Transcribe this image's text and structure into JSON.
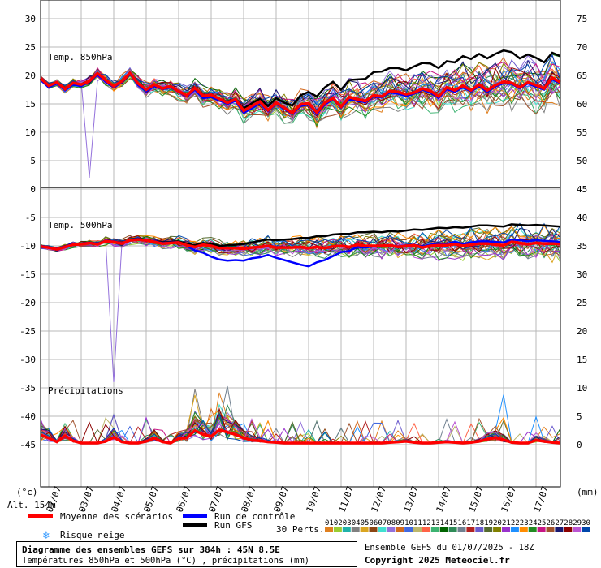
{
  "chart_data": {
    "type": "line",
    "title": "Diagramme des ensembles GEFS sur 384h : 45N 8.5E",
    "subtitle": "Températures 850hPa et 500hPa (°C) , précipitations (mm)",
    "ensemble_info": "Ensemble GEFS du 01/07/2025 - 18Z",
    "copyright": "Copyright 2025 Meteociel.fr",
    "left_unit": "(°c)",
    "right_unit": "(mm)",
    "altitude": "Alt. 154m",
    "x_dates": [
      "02/07",
      "03/07",
      "04/07",
      "05/07",
      "06/07",
      "07/07",
      "08/07",
      "09/07",
      "10/07",
      "11/07",
      "12/07",
      "13/07",
      "14/07",
      "15/07",
      "16/07",
      "17/07"
    ],
    "left_ticks": [
      30,
      25,
      20,
      15,
      10,
      5,
      0,
      -5,
      -10,
      -15,
      -20,
      -25,
      -30,
      -35,
      -40,
      -45
    ],
    "right_ticks": [
      75,
      70,
      65,
      60,
      55,
      50,
      45,
      40,
      35,
      30,
      25,
      20,
      15,
      10,
      5,
      0
    ],
    "panels": [
      {
        "label": "Temp. 850hPa",
        "ylim": [
          0,
          30
        ]
      },
      {
        "label": "Temp. 500hPa",
        "ylim": [
          -45,
          0
        ]
      },
      {
        "label": "Précipitations",
        "ylim": [
          0,
          15
        ]
      }
    ],
    "x_steps": 64,
    "t850_mean": [
      19.5,
      18.2,
      18.8,
      17.6,
      18.7,
      18.4,
      19,
      20.4,
      19.2,
      18.1,
      19,
      20.4,
      18.6,
      17.5,
      18.4,
      17.7,
      18.1,
      17.2,
      16.5,
      17.8,
      16.4,
      16.6,
      15.9,
      15.2,
      15.8,
      13.8,
      14.6,
      15.4,
      13.9,
      15.2,
      14.3,
      13.4,
      14.9,
      15.1,
      13.5,
      15.2,
      16,
      14.5,
      16.2,
      15.8,
      15.5,
      16.5,
      16.3,
      17.3,
      17.1,
      16.7,
      17,
      17.7,
      17.3,
      16.3,
      17.9,
      17.4,
      18.2,
      17.4,
      18.4,
      17.4,
      18.3,
      18.9,
      18.7,
      17.9,
      18.8,
      18.3,
      17.7,
      19.6,
      18.8
    ],
    "t500_mean": [
      -10.1,
      -10.3,
      -10.6,
      -10.2,
      -9.8,
      -9.7,
      -9.5,
      -9.7,
      -9.2,
      -9.3,
      -9.6,
      -9,
      -8.9,
      -9,
      -9.3,
      -9.6,
      -9.5,
      -9.4,
      -9.9,
      -10.2,
      -9.8,
      -10,
      -10.4,
      -10.4,
      -10.4,
      -10.5,
      -10.3,
      -10.2,
      -10,
      -10.3,
      -10.3,
      -10.3,
      -10.2,
      -10.4,
      -10.2,
      -10.4,
      -10.1,
      -10,
      -10.2,
      -9.8,
      -10,
      -10,
      -10,
      -9.9,
      -10.2,
      -10,
      -9.9,
      -10.3,
      -10,
      -9.9,
      -9.9,
      -9.7,
      -10,
      -9.8,
      -9.6,
      -9.6,
      -9.8,
      -9.9,
      -9.3,
      -9.5,
      -9.7,
      -9.5,
      -9.6,
      -9.6,
      -9.7
    ],
    "t850_control": [
      19.2,
      17.9,
      18.6,
      17.4,
      18.4,
      18.1,
      18.9,
      20.1,
      18.9,
      17.9,
      18.8,
      20.3,
      18.3,
      17.2,
      18.1,
      17.6,
      17.9,
      17.1,
      16.3,
      17.5,
      16,
      16.2,
      15.6,
      15,
      15.5,
      13.4,
      14.2,
      15.1,
      13.7,
      15,
      14.1,
      13.2,
      14.6,
      14.9,
      13.2,
      14.9,
      15.8,
      14.3,
      15.8,
      15.5,
      15.3,
      16.3,
      16.1,
      17,
      16.8,
      16.4,
      16.8,
      17.5,
      17,
      16,
      17.6,
      17.1,
      17.9,
      17.2,
      18.1,
      17.1,
      18.1,
      18.6,
      18.5,
      17.7,
      18.6,
      18,
      17.5,
      19.3,
      18.6
    ],
    "t850_gfs": [
      19.3,
      18.1,
      18.7,
      17.5,
      18.6,
      18.3,
      18.8,
      20.3,
      19.1,
      18,
      18.9,
      20.5,
      18.5,
      17.4,
      18.3,
      17.6,
      18,
      17.1,
      16.4,
      17.7,
      16.3,
      16.4,
      15.8,
      15.1,
      15.8,
      14.2,
      15.1,
      15.9,
      14.6,
      16,
      15.2,
      14.7,
      16.5,
      17.1,
      16.3,
      17.9,
      18.9,
      17.5,
      19.2,
      19.3,
      19.4,
      20.6,
      20.7,
      21.3,
      21.3,
      20.9,
      21.6,
      22.2,
      22.1,
      21.3,
      22.5,
      22.3,
      23.4,
      22.9,
      23.8,
      23,
      23.8,
      24.4,
      24.1,
      23,
      23.7,
      23.1,
      22.3,
      24,
      23.4
    ],
    "t500_control": [
      -10,
      -10.2,
      -10.4,
      -10.1,
      -9.6,
      -9.6,
      -9.4,
      -9.6,
      -9.1,
      -9.2,
      -9.5,
      -8.9,
      -8.8,
      -9,
      -9.2,
      -9.5,
      -9.4,
      -9.3,
      -10,
      -10.8,
      -11.2,
      -11.9,
      -12.4,
      -12.6,
      -12.5,
      -12.6,
      -12.2,
      -12,
      -11.6,
      -12.1,
      -12.5,
      -12.9,
      -13.3,
      -13.6,
      -12.9,
      -12.5,
      -11.8,
      -11.1,
      -10.9,
      -10.2,
      -10.3,
      -10.1,
      -10,
      -9.8,
      -10.1,
      -9.9,
      -9.8,
      -10.1,
      -9.8,
      -9.6,
      -9.6,
      -9.3,
      -9.6,
      -9.4,
      -9.2,
      -9.2,
      -9.3,
      -9.4,
      -8.9,
      -9,
      -9.2,
      -9,
      -9.1,
      -9.2,
      -9.3
    ],
    "t500_gfs": [
      -10,
      -10.2,
      -10.5,
      -10.1,
      -9.7,
      -9.6,
      -9.4,
      -9.6,
      -9.1,
      -9.2,
      -9.5,
      -8.9,
      -8.8,
      -8.9,
      -9.2,
      -9.4,
      -9.3,
      -9.2,
      -9.6,
      -9.9,
      -9.5,
      -9.6,
      -10,
      -9.9,
      -9.8,
      -9.7,
      -9.4,
      -9.1,
      -8.9,
      -9,
      -8.9,
      -8.8,
      -8.6,
      -8.6,
      -8.3,
      -8.3,
      -8,
      -7.9,
      -7.9,
      -7.6,
      -7.6,
      -7.5,
      -7.6,
      -7.4,
      -7.5,
      -7.3,
      -7.1,
      -7.2,
      -7,
      -6.8,
      -6.9,
      -6.7,
      -6.8,
      -6.6,
      -6.4,
      -6.4,
      -6.5,
      -6.6,
      -6.2,
      -6.3,
      -6.4,
      -6.3,
      -6.4,
      -6.5,
      -6.6
    ],
    "precip_mean": [
      1.4,
      0.9,
      0.2,
      1.3,
      0.4,
      0,
      0,
      0,
      0.3,
      1,
      0.2,
      0,
      0,
      0.3,
      0.9,
      0.2,
      0,
      0.8,
      0.9,
      2.2,
      1.5,
      1.2,
      2.3,
      1.9,
      1.5,
      0.9,
      0.5,
      0.4,
      0.2,
      0.1,
      0,
      0,
      0,
      0,
      0,
      0,
      0,
      0,
      0,
      0,
      0,
      0,
      0,
      0.1,
      0.2,
      0.3,
      0.1,
      0,
      0,
      0.1,
      0.2,
      0.1,
      0,
      0.1,
      0.3,
      0.7,
      0.9,
      0.6,
      0.1,
      0,
      0,
      0.5,
      0.3,
      0.1,
      0
    ],
    "series_legend": [
      {
        "name": "Moyenne des scénarios",
        "color": "#ff0000"
      },
      {
        "name": "Run de contrôle",
        "color": "#0000ff"
      },
      {
        "name": "Run GFS",
        "color": "#000000"
      }
    ],
    "risk_label": "Risque neige",
    "perts_label": "30 Perts.",
    "perts": [
      "01",
      "02",
      "03",
      "04",
      "05",
      "06",
      "07",
      "08",
      "09",
      "10",
      "11",
      "12",
      "13",
      "14",
      "15",
      "16",
      "17",
      "18",
      "19",
      "20",
      "21",
      "22",
      "23",
      "24",
      "25",
      "26",
      "27",
      "28",
      "29",
      "30"
    ],
    "perts_colors": [
      "#e08020",
      "#9acd32",
      "#20b2aa",
      "#808080",
      "#daa520",
      "#8b4513",
      "#40e0d0",
      "#9370db",
      "#d2691e",
      "#4169e1",
      "#bdb76b",
      "#ff6347",
      "#3cb371",
      "#006400",
      "#2e8b57",
      "#708090",
      "#b22222",
      "#6a5acd",
      "#556b2f",
      "#808000",
      "#9932cc",
      "#1e90ff",
      "#ff8c00",
      "#228b22",
      "#c71585",
      "#a0522d",
      "#191970",
      "#8b0000",
      "#ba55d3",
      "#0047ab"
    ]
  }
}
